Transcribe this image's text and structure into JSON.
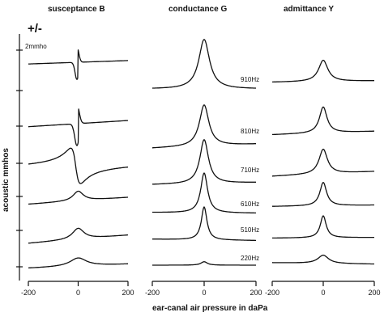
{
  "chart_data": {
    "type": "line",
    "ylabel": "acoustic mmhos",
    "xlabel": "ear-canal air pressure in daPa",
    "scale_label": "2mmho",
    "sign_label": "+/-",
    "xlim": [
      -200,
      200
    ],
    "xticks": [
      -200,
      0,
      200
    ],
    "xtick_labels": [
      "-200",
      "0",
      "200"
    ],
    "frequencies": [
      "910Hz",
      "810Hz",
      "710Hz",
      "610Hz",
      "510Hz",
      "220Hz"
    ],
    "panels": [
      {
        "title": "susceptance B",
        "series": [
          {
            "freq": "910Hz",
            "peak": -1.25,
            "shape": "dispersive",
            "wide": 15,
            "left": 0.05,
            "right": 0.3
          },
          {
            "freq": "810Hz",
            "peak": -1.6,
            "shape": "dispersive",
            "wide": 18,
            "left": -0.1,
            "right": 0.35
          },
          {
            "freq": "710Hz",
            "peak": 1.3,
            "shape": "dispersive_small",
            "wide": 20,
            "left": -0.15,
            "right": 0.15
          },
          {
            "freq": "610Hz",
            "peak": 0.7,
            "shape": "peak",
            "wide": 25,
            "left": -0.45,
            "right": 0.05
          },
          {
            "freq": "510Hz",
            "peak": 0.8,
            "shape": "peak",
            "wide": 28,
            "left": -0.65,
            "right": -0.05
          },
          {
            "freq": "220Hz",
            "peak": 0.6,
            "shape": "peak",
            "wide": 40,
            "left": -0.4,
            "right": -0.1
          }
        ]
      },
      {
        "title": "conductance G",
        "series": [
          {
            "freq": "910Hz",
            "peak": 3.6,
            "shape": "peak",
            "wide": 25,
            "left": 0.0,
            "right": 0.0
          },
          {
            "freq": "810Hz",
            "peak": 3.0,
            "shape": "peak",
            "wide": 22,
            "left": -0.2,
            "right": 0.1
          },
          {
            "freq": "710Hz",
            "peak": 3.2,
            "shape": "peak",
            "wide": 20,
            "left": -0.2,
            "right": -0.05
          },
          {
            "freq": "610Hz",
            "peak": 2.9,
            "shape": "peak",
            "wide": 16,
            "left": -0.05,
            "right": -0.1
          },
          {
            "freq": "510Hz",
            "peak": 2.4,
            "shape": "peak",
            "wide": 13,
            "left": -0.05,
            "right": -0.15
          },
          {
            "freq": "220Hz",
            "peak": 0.25,
            "shape": "peak",
            "wide": 15,
            "left": 0.0,
            "right": 0.0
          }
        ]
      },
      {
        "title": "admittance Y",
        "series": [
          {
            "freq": "910Hz",
            "peak": 1.55,
            "shape": "peak",
            "wide": 22,
            "left": -0.1,
            "right": 0.0
          },
          {
            "freq": "810Hz",
            "peak": 1.9,
            "shape": "peak",
            "wide": 18,
            "left": -0.1,
            "right": 0.15
          },
          {
            "freq": "710Hz",
            "peak": 1.8,
            "shape": "peak",
            "wide": 20,
            "left": -0.3,
            "right": 0.05
          },
          {
            "freq": "610Hz",
            "peak": 1.7,
            "shape": "peak",
            "wide": 16,
            "left": -0.2,
            "right": -0.1
          },
          {
            "freq": "510Hz",
            "peak": 1.6,
            "shape": "peak",
            "wide": 14,
            "left": -0.15,
            "right": -0.1
          },
          {
            "freq": "220Hz",
            "peak": 0.6,
            "shape": "peak",
            "wide": 25,
            "left": 0.0,
            "right": -0.1
          }
        ]
      }
    ]
  }
}
